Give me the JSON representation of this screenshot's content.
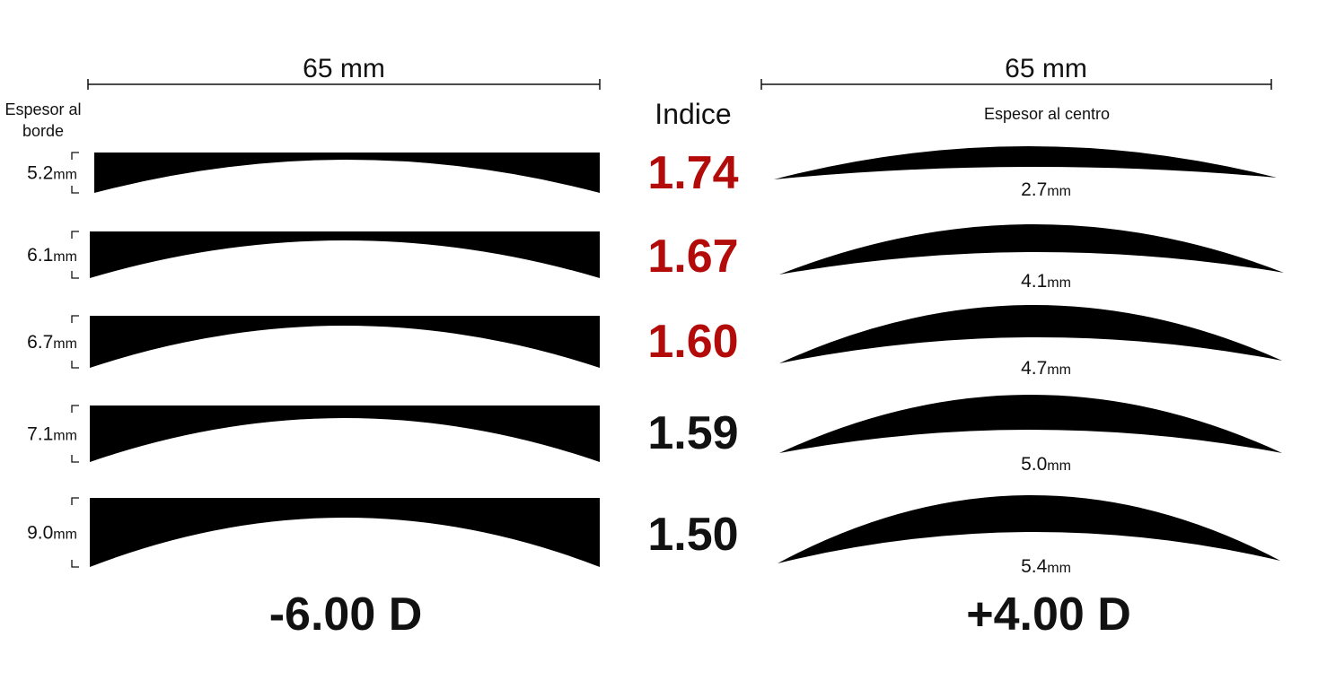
{
  "left": {
    "width_label": "65 mm",
    "heading_lines": [
      "Espesor al",
      "borde"
    ],
    "rows": [
      {
        "thickness": "5.2",
        "unit": "mm"
      },
      {
        "thickness": "6.1",
        "unit": "mm"
      },
      {
        "thickness": "6.7",
        "unit": "mm"
      },
      {
        "thickness": "7.1",
        "unit": "mm"
      },
      {
        "thickness": "9.0",
        "unit": "mm"
      }
    ],
    "power": "-6.00 D"
  },
  "center": {
    "heading": "Indice",
    "rows": [
      "1.74",
      "1.67",
      "1.60",
      "1.59",
      "1.50"
    ]
  },
  "right": {
    "width_label": "65 mm",
    "heading": "Espesor al centro",
    "rows": [
      {
        "thickness": "2.7",
        "unit": "mm"
      },
      {
        "thickness": "4.1",
        "unit": "mm"
      },
      {
        "thickness": "4.7",
        "unit": "mm"
      },
      {
        "thickness": "5.0",
        "unit": "mm"
      },
      {
        "thickness": "5.4",
        "unit": "mm"
      }
    ],
    "power": "+4.00 D"
  }
}
